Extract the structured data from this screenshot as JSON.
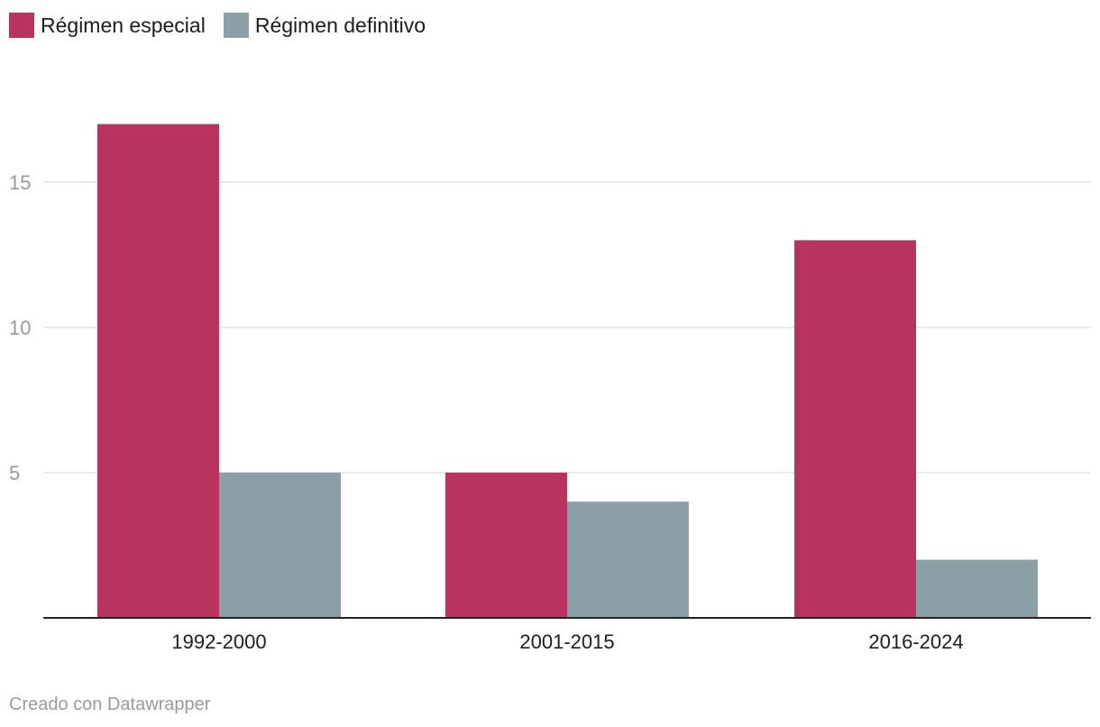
{
  "legend": {
    "items": [
      {
        "label": "Régimen especial",
        "color": "#b8335e"
      },
      {
        "label": "Régimen definitivo",
        "color": "#8a9fa6"
      }
    ]
  },
  "footer": {
    "credit": "Creado con Datawrapper"
  },
  "chart_data": {
    "type": "bar",
    "categories": [
      "1992-2000",
      "2001-2015",
      "2016-2024"
    ],
    "series": [
      {
        "name": "Régimen especial",
        "values": [
          17,
          5,
          13
        ],
        "color": "#b8335e"
      },
      {
        "name": "Régimen definitivo",
        "values": [
          5,
          4,
          2
        ],
        "color": "#8a9fa6"
      }
    ],
    "yticks": [
      5,
      10,
      15
    ],
    "ylim": [
      0,
      18.6
    ],
    "grid": true,
    "legend_position": "top-left",
    "title": "",
    "xlabel": "",
    "ylabel": ""
  }
}
